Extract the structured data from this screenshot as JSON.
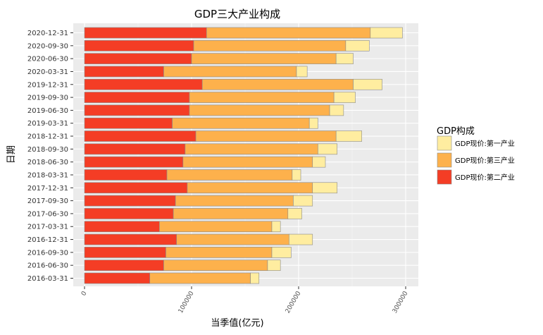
{
  "chart_data": {
    "type": "bar",
    "orientation": "horizontal",
    "stacked": true,
    "title": "GDP三大产业构成",
    "xlabel": "当季值(亿元)",
    "ylabel": "日期",
    "xlim": [
      0,
      310000
    ],
    "xticks": [
      0,
      100000,
      200000,
      300000
    ],
    "xtick_labels": [
      "0",
      "100000",
      "200000",
      "300000"
    ],
    "categories": [
      "2016-03-31",
      "2016-06-30",
      "2016-09-30",
      "2016-12-31",
      "2017-03-31",
      "2017-06-30",
      "2017-09-30",
      "2017-12-31",
      "2018-03-31",
      "2018-06-30",
      "2018-09-30",
      "2018-12-31",
      "2019-03-31",
      "2019-06-30",
      "2019-09-30",
      "2019-12-31",
      "2020-03-31",
      "2020-06-30",
      "2020-09-30",
      "2020-12-31"
    ],
    "series": [
      {
        "name": "GDP现价:第二产业",
        "color": "#f43d25",
        "values": [
          61000,
          74000,
          76000,
          86000,
          70000,
          83000,
          85000,
          96000,
          77000,
          92000,
          94000,
          104000,
          82000,
          98000,
          98000,
          110000,
          74000,
          100000,
          102000,
          114000
        ]
      },
      {
        "name": "GDP现价:第三产业",
        "color": "#fdb14c",
        "values": [
          94000,
          97000,
          99000,
          105000,
          105000,
          107000,
          110000,
          117000,
          117000,
          121000,
          124000,
          131000,
          128000,
          131000,
          135000,
          141000,
          124000,
          135000,
          142000,
          153000
        ]
      },
      {
        "name": "GDP现价:第一产业",
        "color": "#ffeda0",
        "values": [
          8000,
          12000,
          18000,
          22000,
          8000,
          13000,
          18000,
          23000,
          8000,
          12000,
          18000,
          24000,
          8000,
          13000,
          20000,
          27000,
          10000,
          16000,
          22000,
          30000
        ]
      }
    ],
    "legend": {
      "title": "GDP构成",
      "placement": "right",
      "entries": [
        {
          "label": "GDP现价:第一产业",
          "color": "#ffeda0"
        },
        {
          "label": "GDP现价:第三产业",
          "color": "#fdb14c"
        },
        {
          "label": "GDP现价:第二产业",
          "color": "#f43d25"
        }
      ]
    },
    "grid": true
  }
}
